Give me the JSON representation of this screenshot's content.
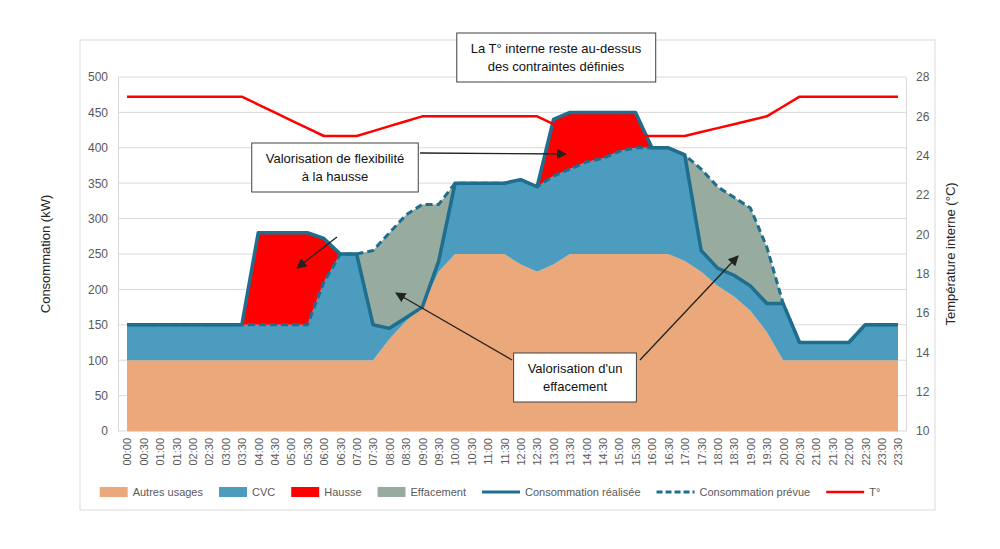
{
  "chart_data": {
    "type": "area",
    "stacked": true,
    "grid": true,
    "legend": "bottom",
    "ylabel": "Consommation (kW)",
    "y2label": "Température interne (°C)",
    "ylim": [
      0,
      500
    ],
    "yticks": [
      0,
      50,
      100,
      150,
      200,
      250,
      300,
      350,
      400,
      450,
      500
    ],
    "y2lim": [
      10,
      28
    ],
    "y2ticks": [
      10,
      12,
      14,
      16,
      18,
      20,
      22,
      24,
      26,
      28
    ],
    "categories": [
      "00:00",
      "00:30",
      "01:00",
      "01:30",
      "02:00",
      "02:30",
      "03:00",
      "03:30",
      "04:00",
      "04:30",
      "05:00",
      "05:30",
      "06:00",
      "06:30",
      "07:00",
      "07:30",
      "08:00",
      "08:30",
      "09:00",
      "09:30",
      "10:00",
      "10:30",
      "11:00",
      "11:30",
      "12:00",
      "12:30",
      "13:00",
      "13:30",
      "14:00",
      "14:30",
      "15:00",
      "15:30",
      "16:00",
      "16:30",
      "17:00",
      "17:30",
      "18:00",
      "18:30",
      "19:00",
      "19:30",
      "20:00",
      "20:30",
      "21:00",
      "21:30",
      "22:00",
      "22:30",
      "23:00",
      "23:30"
    ],
    "series": [
      {
        "name": "Autres usages",
        "color": "#EBA87B",
        "values": [
          100,
          100,
          100,
          100,
          100,
          100,
          100,
          100,
          100,
          100,
          100,
          100,
          100,
          100,
          100,
          100,
          130,
          155,
          175,
          225,
          250,
          250,
          250,
          250,
          235,
          225,
          235,
          250,
          250,
          250,
          250,
          250,
          250,
          250,
          240,
          225,
          205,
          190,
          170,
          140,
          100,
          100,
          100,
          100,
          100,
          100,
          100,
          100
        ]
      },
      {
        "name": "CVC",
        "color": "#4B9CBE",
        "values": [
          50,
          50,
          50,
          50,
          50,
          50,
          50,
          50,
          50,
          50,
          50,
          50,
          110,
          150,
          150,
          50,
          15,
          5,
          0,
          15,
          100,
          100,
          100,
          100,
          120,
          120,
          125,
          120,
          130,
          135,
          145,
          150,
          150,
          150,
          150,
          30,
          25,
          30,
          35,
          40,
          80,
          25,
          25,
          25,
          25,
          50,
          50,
          50
        ]
      },
      {
        "name": "Hausse",
        "color": "#FF0000",
        "values": [
          0,
          0,
          0,
          0,
          0,
          0,
          0,
          0,
          130,
          130,
          130,
          130,
          62,
          0,
          0,
          0,
          0,
          0,
          0,
          0,
          0,
          0,
          0,
          0,
          0,
          0,
          80,
          80,
          70,
          65,
          55,
          50,
          0,
          0,
          0,
          0,
          0,
          0,
          0,
          0,
          0,
          0,
          0,
          0,
          0,
          0,
          0,
          0
        ]
      },
      {
        "name": "Effacement",
        "color": "#97AB9E",
        "values": [
          0,
          0,
          0,
          0,
          0,
          0,
          0,
          0,
          0,
          0,
          0,
          0,
          0,
          0,
          0,
          105,
          135,
          145,
          145,
          80,
          0,
          0,
          0,
          0,
          0,
          0,
          0,
          0,
          0,
          0,
          0,
          0,
          0,
          0,
          0,
          115,
          115,
          110,
          110,
          80,
          0,
          0,
          0,
          0,
          0,
          0,
          0,
          0
        ]
      },
      {
        "name": "Consommation réalisée",
        "type": "line",
        "color": "#1F6E8E",
        "line_style": "solid",
        "values": [
          150,
          150,
          150,
          150,
          150,
          150,
          150,
          150,
          280,
          280,
          280,
          280,
          272,
          250,
          250,
          150,
          145,
          160,
          175,
          240,
          350,
          350,
          350,
          350,
          355,
          345,
          440,
          450,
          450,
          450,
          450,
          450,
          400,
          400,
          390,
          255,
          230,
          220,
          205,
          180,
          180,
          125,
          125,
          125,
          125,
          150,
          150,
          150
        ]
      },
      {
        "name": "Consommation prévue",
        "type": "line",
        "color": "#1F6E8E",
        "line_style": "dashed",
        "values": [
          150,
          150,
          150,
          150,
          150,
          150,
          150,
          150,
          150,
          150,
          150,
          150,
          210,
          250,
          250,
          255,
          280,
          305,
          320,
          320,
          350,
          350,
          350,
          350,
          355,
          345,
          360,
          370,
          380,
          385,
          395,
          400,
          400,
          400,
          390,
          370,
          345,
          330,
          315,
          260,
          180,
          125,
          125,
          125,
          125,
          150,
          150,
          150
        ]
      },
      {
        "name": "T°",
        "type": "line",
        "color": "#FF0000",
        "line_style": "solid",
        "axis": "y2",
        "values": [
          27,
          27,
          27,
          27,
          27,
          27,
          27,
          27,
          26.6,
          26.2,
          25.8,
          25.4,
          25,
          25,
          25,
          25.25,
          25.5,
          25.75,
          26,
          26,
          26,
          26,
          26,
          26,
          26,
          26,
          25.6,
          25.3,
          25,
          25,
          25,
          25,
          25,
          25,
          25,
          25.2,
          25.4,
          25.6,
          25.8,
          26,
          26.5,
          27,
          27,
          27,
          27,
          27,
          27,
          27
        ]
      }
    ],
    "annotations": [
      {
        "text": [
          "La T° interne reste au-dessus",
          "des contraintes définies"
        ]
      },
      {
        "text": [
          "Valorisation de flexibilité",
          "à la hausse"
        ]
      },
      {
        "text": [
          "Valorisation d'un",
          "effacement"
        ]
      }
    ]
  }
}
